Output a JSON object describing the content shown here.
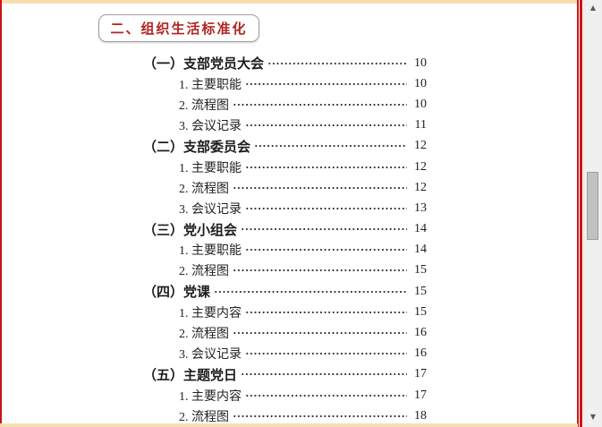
{
  "page": {
    "section_title": "二、组织生活标准化",
    "colors": {
      "title_red": "#b2241f",
      "border_red": "#cc1414",
      "border_tan": "#f9ddb2",
      "dots": "#3c3c3c"
    }
  },
  "toc": {
    "entries": [
      {
        "level": 1,
        "label": "（一）支部党员大会",
        "page": "10"
      },
      {
        "level": 2,
        "label": "1. 主要职能",
        "page": "10"
      },
      {
        "level": 2,
        "label": "2. 流程图",
        "page": "10"
      },
      {
        "level": 2,
        "label": "3. 会议记录",
        "page": "11"
      },
      {
        "level": 1,
        "label": "（二）支部委员会",
        "page": "12"
      },
      {
        "level": 2,
        "label": "1. 主要职能",
        "page": "12"
      },
      {
        "level": 2,
        "label": "2. 流程图",
        "page": "12"
      },
      {
        "level": 2,
        "label": "3. 会议记录",
        "page": "13"
      },
      {
        "level": 1,
        "label": "（三）党小组会",
        "page": "14"
      },
      {
        "level": 2,
        "label": "1. 主要职能",
        "page": "14"
      },
      {
        "level": 2,
        "label": "2. 流程图",
        "page": "15"
      },
      {
        "level": 1,
        "label": "（四）党课",
        "page": "15"
      },
      {
        "level": 2,
        "label": "1. 主要内容",
        "page": "15"
      },
      {
        "level": 2,
        "label": "2. 流程图",
        "page": "16"
      },
      {
        "level": 2,
        "label": "3. 会议记录",
        "page": "16"
      },
      {
        "level": 1,
        "label": "（五）主题党日",
        "page": "17"
      },
      {
        "level": 2,
        "label": "1. 主要内容",
        "page": "17"
      },
      {
        "level": 2,
        "label": "2. 流程图",
        "page": "18"
      }
    ]
  },
  "scrollbar": {
    "up_arrow": "▲",
    "down_arrow": "▼"
  }
}
